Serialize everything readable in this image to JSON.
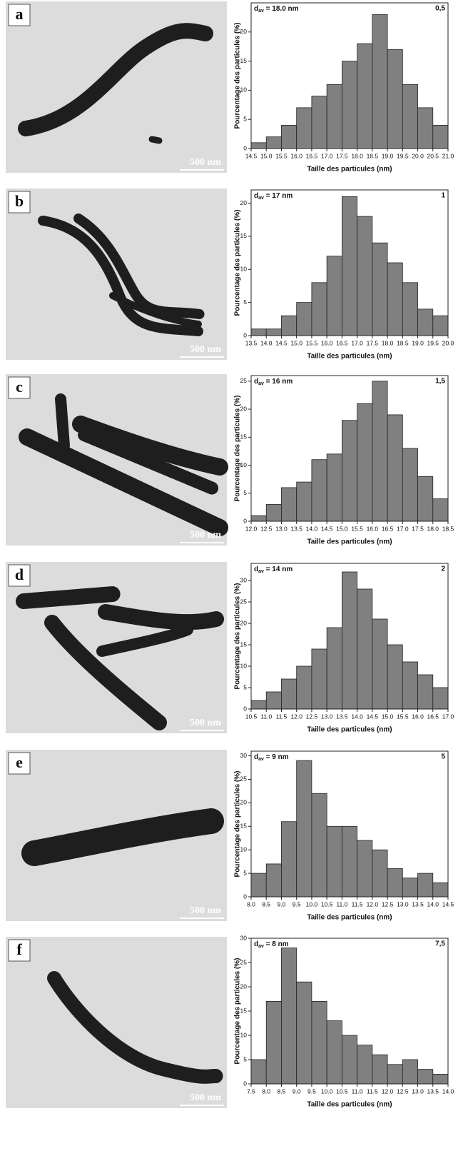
{
  "chart_data": [
    {
      "type": "histogram",
      "panel_label": "a",
      "scale_bar": "500 nm",
      "stat": {
        "symbol": "d",
        "subscript": "av",
        "text": " = 18.0 nm"
      },
      "corner_label": "0,5",
      "xlabel": "Taille des particules (nm)",
      "ylabel": "Pourcentage des particules (%)",
      "color": "#808080",
      "bins": [
        14.5,
        15,
        15.5,
        16,
        16.5,
        17,
        17.5,
        18,
        18.5,
        19,
        19.5,
        20,
        20.5,
        21
      ],
      "values": [
        1,
        2,
        4,
        7,
        9,
        11,
        15,
        18,
        23,
        17,
        11,
        7,
        4
      ],
      "xlim": [
        14.5,
        21
      ],
      "xticks": [
        14.5,
        {
          "value": 15,
          "label": "15.0"
        },
        15.5,
        {
          "value": 16,
          "label": "16.0"
        },
        16.5,
        {
          "value": 17,
          "label": "17.0"
        },
        17.5,
        {
          "value": 18,
          "label": "18.0"
        },
        18.5,
        {
          "value": 19,
          "label": "19.0"
        },
        19.5,
        {
          "value": 20,
          "label": "20.0"
        },
        20.5,
        {
          "value": 21,
          "label": "21.0"
        }
      ],
      "ylim": [
        0,
        25
      ],
      "yticks": [
        0,
        5,
        10,
        15,
        20
      ]
    },
    {
      "type": "histogram",
      "panel_label": "b",
      "scale_bar": "500 nm",
      "stat": {
        "symbol": "d",
        "subscript": "av",
        "text": " = 17 nm"
      },
      "corner_label": "1",
      "xlabel": "Taille des particules (nm)",
      "ylabel": "Pourcentage des particules (%)",
      "color": "#808080",
      "bins": [
        13.5,
        14,
        14.5,
        15,
        15.5,
        16,
        16.5,
        17,
        17.5,
        18,
        18.5,
        19,
        19.5,
        20
      ],
      "values": [
        1,
        1,
        3,
        5,
        8,
        12,
        21,
        18,
        14,
        11,
        8,
        4,
        3
      ],
      "xlim": [
        13.5,
        20
      ],
      "xticks": [
        13.5,
        {
          "value": 14,
          "label": "14.0"
        },
        14.5,
        {
          "value": 15,
          "label": "15.0"
        },
        15.5,
        {
          "value": 16,
          "label": "16.0"
        },
        16.5,
        {
          "value": 17,
          "label": "17.0"
        },
        17.5,
        {
          "value": 18,
          "label": "18.0"
        },
        18.5,
        {
          "value": 19,
          "label": "19.0"
        },
        19.5,
        {
          "value": 20,
          "label": "20.0"
        }
      ],
      "ylim": [
        0,
        22
      ],
      "yticks": [
        0,
        5,
        10,
        15,
        20
      ]
    },
    {
      "type": "histogram",
      "panel_label": "c",
      "scale_bar": "500 nm",
      "stat": {
        "symbol": "d",
        "subscript": "av",
        "text": " = 16 nm"
      },
      "corner_label": "1,5",
      "xlabel": "Taille des particules (nm)",
      "ylabel": "Pourcentage des particules (%)",
      "color": "#808080",
      "bins": [
        12,
        12.5,
        13,
        13.5,
        14,
        14.5,
        15,
        15.5,
        16,
        16.5,
        17,
        17.5,
        18,
        18.5
      ],
      "values": [
        1,
        3,
        6,
        7,
        11,
        12,
        18,
        21,
        25,
        19,
        13,
        8,
        4
      ],
      "xlim": [
        12,
        18.5
      ],
      "xticks": [
        {
          "value": 12,
          "label": "12.0"
        },
        12.5,
        {
          "value": 13,
          "label": "13.0"
        },
        13.5,
        {
          "value": 14,
          "label": "14.0"
        },
        14.5,
        {
          "value": 15,
          "label": "15.0"
        },
        15.5,
        {
          "value": 16,
          "label": "16.0"
        },
        16.5,
        {
          "value": 17,
          "label": "17.0"
        },
        17.5,
        {
          "value": 18,
          "label": "18.0"
        },
        18.5
      ],
      "ylim": [
        0,
        26
      ],
      "yticks": [
        0,
        5,
        10,
        15,
        20,
        25
      ]
    },
    {
      "type": "histogram",
      "panel_label": "d",
      "scale_bar": "500 nm",
      "stat": {
        "symbol": "d",
        "subscript": "av",
        "text": " = 14 nm"
      },
      "corner_label": "2",
      "xlabel": "Taille des particules (nm)",
      "ylabel": "Pourcentage des particules (%)",
      "color": "#808080",
      "bins": [
        10.5,
        11,
        11.5,
        12,
        12.5,
        13,
        13.5,
        14,
        14.5,
        15,
        15.5,
        16,
        16.5,
        17
      ],
      "values": [
        2,
        4,
        7,
        10,
        14,
        19,
        32,
        28,
        21,
        15,
        11,
        8,
        5
      ],
      "xlim": [
        10.5,
        17
      ],
      "xticks": [
        10.5,
        {
          "value": 11,
          "label": "11.0"
        },
        11.5,
        {
          "value": 12,
          "label": "12.0"
        },
        12.5,
        {
          "value": 13,
          "label": "13.0"
        },
        13.5,
        {
          "value": 14,
          "label": "14.0"
        },
        14.5,
        {
          "value": 15,
          "label": "15.0"
        },
        15.5,
        {
          "value": 16,
          "label": "16.0"
        },
        16.5,
        {
          "value": 17,
          "label": "17.0"
        }
      ],
      "ylim": [
        0,
        34
      ],
      "yticks": [
        0,
        5,
        10,
        15,
        20,
        25,
        30
      ]
    },
    {
      "type": "histogram",
      "panel_label": "e",
      "scale_bar": "500 nm",
      "stat": {
        "symbol": "d",
        "subscript": "av",
        "text": " = 9 nm"
      },
      "corner_label": "5",
      "xlabel": "Taille des particules (nm)",
      "ylabel": "Pourcentage des particules (%)",
      "color": "#808080",
      "bins": [
        8,
        8.5,
        9,
        9.5,
        10,
        10.5,
        11,
        11.5,
        12,
        12.5,
        13,
        13.5,
        14,
        14.5
      ],
      "values": [
        5,
        7,
        16,
        29,
        22,
        15,
        15,
        12,
        10,
        6,
        4,
        5,
        3
      ],
      "xlim": [
        8,
        14.5
      ],
      "xticks": [
        {
          "value": 8,
          "label": "8.0"
        },
        8.5,
        {
          "value": 9,
          "label": "9.0"
        },
        9.5,
        {
          "value": 10,
          "label": "10.0"
        },
        10.5,
        {
          "value": 11,
          "label": "11.0"
        },
        11.5,
        {
          "value": 12,
          "label": "12.0"
        },
        12.5,
        {
          "value": 13,
          "label": "13.0"
        },
        13.5,
        {
          "value": 14,
          "label": "14.0"
        },
        14.5
      ],
      "ylim": [
        0,
        31
      ],
      "yticks": [
        0,
        5,
        10,
        15,
        20,
        25,
        30
      ]
    },
    {
      "type": "histogram",
      "panel_label": "f",
      "scale_bar": "500 nm",
      "stat": {
        "symbol": "d",
        "subscript": "av",
        "text": " = 8 nm"
      },
      "corner_label": "7,5",
      "xlabel": "Taille des particules (nm)",
      "ylabel": "Pourcentage des particules (%)",
      "color": "#808080",
      "bins": [
        7.5,
        8,
        8.5,
        9,
        9.5,
        10,
        10.5,
        11,
        11.5,
        12,
        12.5,
        13,
        13.5,
        14
      ],
      "values": [
        5,
        17,
        28,
        21,
        17,
        13,
        10,
        8,
        6,
        4,
        5,
        3,
        2
      ],
      "xlim": [
        7.5,
        14
      ],
      "xticks": [
        7.5,
        {
          "value": 8,
          "label": "8.0"
        },
        8.5,
        {
          "value": 9,
          "label": "9.0"
        },
        9.5,
        {
          "value": 10,
          "label": "10.0"
        },
        10.5,
        {
          "value": 11,
          "label": "11.0"
        },
        11.5,
        {
          "value": 12,
          "label": "12.0"
        },
        12.5,
        {
          "value": 13,
          "label": "13.0"
        },
        13.5,
        {
          "value": 14,
          "label": "14.0"
        }
      ],
      "ylim": [
        0,
        30
      ],
      "yticks": [
        0,
        5,
        10,
        15,
        20,
        25,
        30
      ]
    }
  ]
}
